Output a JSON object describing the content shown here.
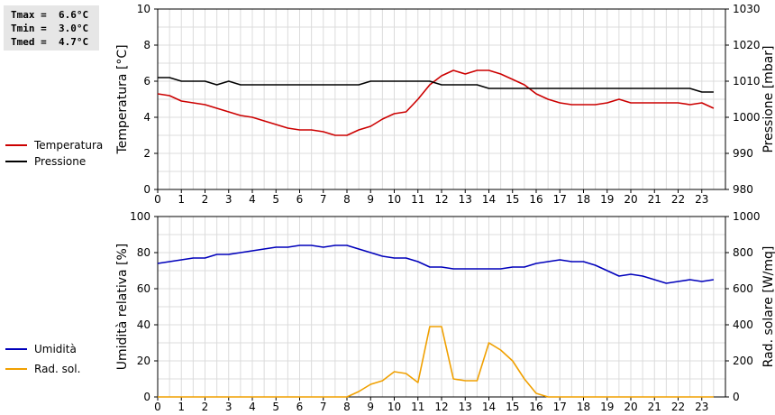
{
  "stats": {
    "tmax": "Tmax =  6.6°C",
    "tmin": "Tmin =  3.0°C",
    "tmed": "Tmed =  4.7°C"
  },
  "chart_data": [
    {
      "type": "line",
      "ylabel_left": "Temperatura [°C]",
      "ylabel_right": "Pressione [mbar]",
      "x_ticks": [
        "0",
        "1",
        "2",
        "3",
        "4",
        "5",
        "6",
        "7",
        "8",
        "9",
        "10",
        "11",
        "12",
        "13",
        "14",
        "15",
        "16",
        "17",
        "18",
        "19",
        "20",
        "21",
        "22",
        "23"
      ],
      "y_left_ticks": [
        "0",
        "2",
        "4",
        "6",
        "8",
        "10"
      ],
      "y_right_ticks": [
        "980",
        "990",
        "1000",
        "1010",
        "1020",
        "1030"
      ],
      "ylim_left": [
        0,
        10
      ],
      "ylim_right": [
        980,
        1030
      ],
      "grid": true,
      "legend": [
        "Temperatura",
        "Pressione"
      ],
      "series": [
        {
          "name": "Temperatura",
          "color": "#cc0000",
          "axis": "left",
          "x": [
            0,
            0.5,
            1,
            1.5,
            2,
            2.5,
            3,
            3.5,
            4,
            4.5,
            5,
            5.5,
            6,
            6.5,
            7,
            7.5,
            8,
            8.5,
            9,
            9.5,
            10,
            10.5,
            11,
            11.5,
            12,
            12.5,
            13,
            13.5,
            14,
            14.5,
            15,
            15.5,
            16,
            16.5,
            17,
            17.5,
            18,
            18.5,
            19,
            19.5,
            20,
            20.5,
            21,
            21.5,
            22,
            22.5,
            23,
            23.5
          ],
          "y": [
            5.3,
            5.2,
            4.9,
            4.8,
            4.7,
            4.5,
            4.3,
            4.1,
            4.0,
            3.8,
            3.6,
            3.4,
            3.3,
            3.3,
            3.2,
            3.0,
            3.0,
            3.3,
            3.5,
            3.9,
            4.2,
            4.3,
            5.0,
            5.8,
            6.3,
            6.6,
            6.4,
            6.6,
            6.6,
            6.4,
            6.1,
            5.8,
            5.3,
            5.0,
            4.8,
            4.7,
            4.7,
            4.7,
            4.8,
            5.0,
            4.8,
            4.8,
            4.8,
            4.8,
            4.8,
            4.7,
            4.8,
            4.5
          ]
        },
        {
          "name": "Pressione",
          "color": "#000000",
          "axis": "right",
          "x": [
            0,
            0.5,
            1,
            1.5,
            2,
            2.5,
            3,
            3.5,
            4,
            5,
            6,
            7,
            8,
            8.5,
            9,
            10,
            11,
            11.5,
            12,
            12.5,
            13,
            13.5,
            14,
            15,
            16,
            17,
            18,
            19,
            20,
            21,
            22,
            22.5,
            23,
            23.5
          ],
          "y": [
            1011,
            1011,
            1010,
            1010,
            1010,
            1009,
            1010,
            1009,
            1009,
            1009,
            1009,
            1009,
            1009,
            1009,
            1010,
            1010,
            1010,
            1010,
            1009,
            1009,
            1009,
            1009,
            1008,
            1008,
            1008,
            1008,
            1008,
            1008,
            1008,
            1008,
            1008,
            1008,
            1007,
            1007
          ]
        }
      ]
    },
    {
      "type": "line",
      "ylabel_left": "Umidità relativa [%]",
      "ylabel_right": "Rad. solare [W/mq]",
      "x_ticks": [
        "0",
        "1",
        "2",
        "3",
        "4",
        "5",
        "6",
        "7",
        "8",
        "9",
        "10",
        "11",
        "12",
        "13",
        "14",
        "15",
        "16",
        "17",
        "18",
        "19",
        "20",
        "21",
        "22",
        "23"
      ],
      "y_left_ticks": [
        "0",
        "20",
        "40",
        "60",
        "80",
        "100"
      ],
      "y_right_ticks": [
        "0",
        "200",
        "400",
        "600",
        "800",
        "1000"
      ],
      "ylim_left": [
        0,
        100
      ],
      "ylim_right": [
        0,
        1000
      ],
      "grid": true,
      "legend": [
        "Umidità",
        "Rad. sol."
      ],
      "series": [
        {
          "name": "Umidità",
          "color": "#0000bb",
          "axis": "left",
          "x": [
            0,
            0.5,
            1,
            1.5,
            2,
            2.5,
            3,
            3.5,
            4,
            4.5,
            5,
            5.5,
            6,
            6.5,
            7,
            7.5,
            8,
            8.5,
            9,
            9.5,
            10,
            10.5,
            11,
            11.5,
            12,
            12.5,
            13,
            13.5,
            14,
            14.5,
            15,
            15.5,
            16,
            16.5,
            17,
            17.5,
            18,
            18.5,
            19,
            19.5,
            20,
            20.5,
            21,
            21.5,
            22,
            22.5,
            23,
            23.5
          ],
          "y": [
            74,
            75,
            76,
            77,
            77,
            79,
            79,
            80,
            81,
            82,
            83,
            83,
            84,
            84,
            83,
            84,
            84,
            82,
            80,
            78,
            77,
            77,
            75,
            72,
            72,
            71,
            71,
            71,
            71,
            71,
            72,
            72,
            74,
            75,
            76,
            75,
            75,
            73,
            70,
            67,
            68,
            67,
            65,
            63,
            64,
            65,
            64,
            65
          ]
        },
        {
          "name": "Rad. sol.",
          "color": "#f0a000",
          "axis": "right",
          "x": [
            0,
            1,
            2,
            3,
            4,
            5,
            6,
            7,
            8,
            8.5,
            9,
            9.5,
            10,
            10.5,
            11,
            11.5,
            12,
            12.5,
            13,
            13.5,
            14,
            14.5,
            15,
            15.5,
            16,
            16.5,
            17,
            18,
            19,
            20,
            21,
            22,
            23,
            23.5
          ],
          "y": [
            0,
            0,
            0,
            0,
            0,
            0,
            0,
            0,
            0,
            30,
            70,
            90,
            140,
            130,
            80,
            390,
            390,
            100,
            90,
            90,
            300,
            260,
            200,
            100,
            20,
            0,
            0,
            0,
            0,
            0,
            0,
            0,
            0,
            0
          ]
        }
      ]
    }
  ]
}
